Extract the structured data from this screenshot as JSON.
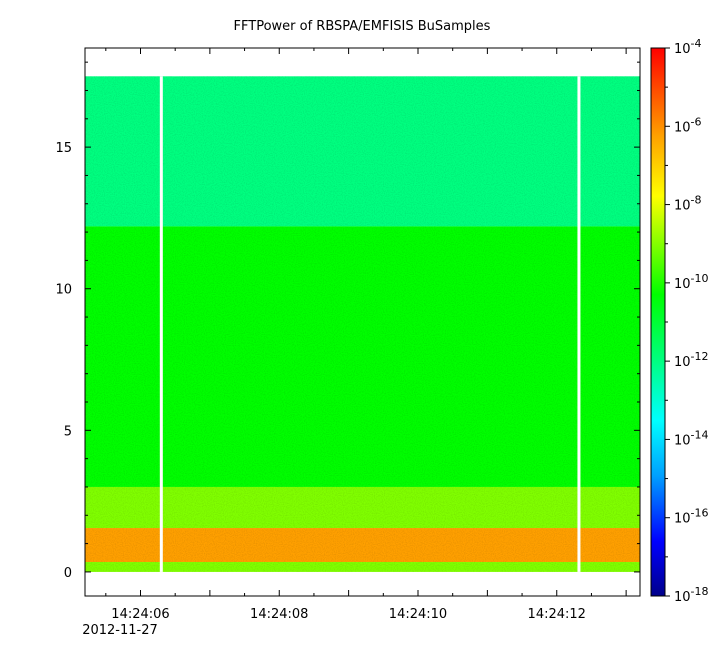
{
  "chart_data": {
    "type": "heatmap",
    "title": "FFTPower of RBSPA/EMFISIS  BuSamples",
    "xlabel": "",
    "ylabel": "",
    "x_tick_labels": [
      "14:24:06",
      "14:24:08",
      "14:24:10",
      "14:24:12"
    ],
    "x_tick_values_s": [
      6,
      8,
      10,
      12
    ],
    "x_date_label": "2012-11-27",
    "xlim_s": [
      5.2,
      13.2
    ],
    "y_tick_labels": [
      "0",
      "5",
      "10",
      "15"
    ],
    "y_tick_values": [
      0,
      5,
      10,
      15
    ],
    "ylim": [
      -0.85,
      18.5
    ],
    "data_freq_range": [
      0,
      17.5
    ],
    "colorbar": {
      "scale": "log",
      "range": [
        1e-18,
        0.0001
      ],
      "tick_labels": [
        {
          "base": "10",
          "exp": "-4"
        },
        {
          "base": "10",
          "exp": "-6"
        },
        {
          "base": "10",
          "exp": "-8"
        },
        {
          "base": "10",
          "exp": "-10"
        },
        {
          "base": "10",
          "exp": "-12"
        },
        {
          "base": "10",
          "exp": "-14"
        },
        {
          "base": "10",
          "exp": "-16"
        },
        {
          "base": "10",
          "exp": "-18"
        }
      ],
      "colors": [
        "#00008b",
        "#0000ff",
        "#00a0ff",
        "#00ffff",
        "#00ff80",
        "#00ff00",
        "#80ff00",
        "#ffff00",
        "#ffa000",
        "#ff0000"
      ]
    },
    "data_gaps_s": [
      6.3,
      12.32
    ],
    "spectral_bands": [
      {
        "f_range": [
          12.2,
          17.5
        ],
        "log10_power": -12.3
      },
      {
        "f_range": [
          3.0,
          12.2
        ],
        "log10_power": -10.5
      },
      {
        "f_range": [
          1.55,
          3.0
        ],
        "log10_power": -9.3
      },
      {
        "f_range": [
          0.35,
          1.55
        ],
        "log10_power": -5.2
      },
      {
        "f_range": [
          0.0,
          0.35
        ],
        "log10_power": -8.0
      }
    ]
  }
}
